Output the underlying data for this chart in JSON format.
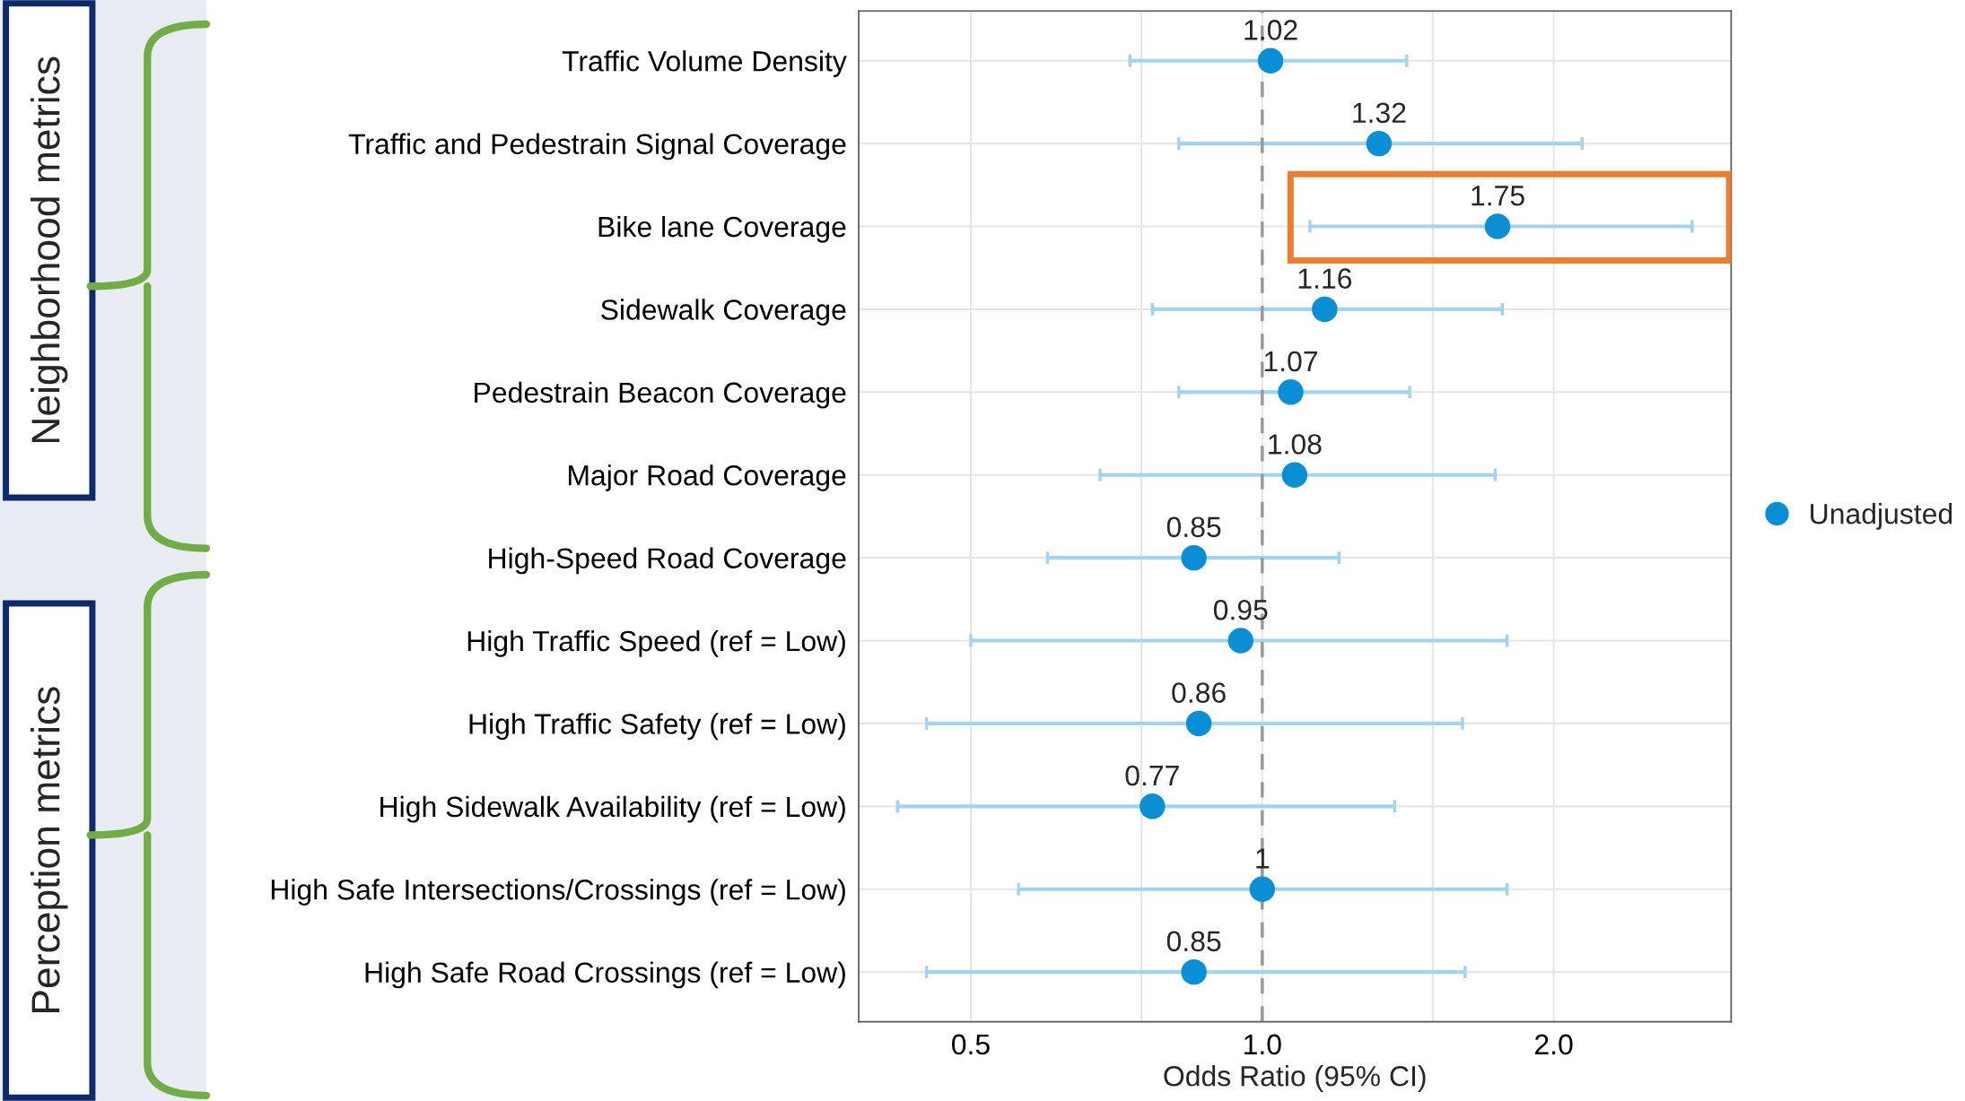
{
  "chart_data": {
    "type": "scatter",
    "orientation": "horizontal",
    "xlabel": "Odds Ratio (95% CI)",
    "categories": [
      "Traffic Volume Density",
      "Traffic and Pedestrain Signal Coverage",
      "Bike lane Coverage",
      "Sidewalk Coverage",
      "Pedestrain Beacon Coverage",
      "Major Road Coverage",
      "High-Speed Road Coverage",
      "High Traffic Speed (ref = Low)",
      "High Traffic Safety (ref = Low)",
      "High Sidewalk Availability (ref = Low)",
      "High Safe Intersections/Crossings (ref = Low)",
      "High Safe Road Crossings (ref = Low)"
    ],
    "series": [
      {
        "name": "Unadjusted",
        "color": "#0a8fd6",
        "values": [
          1.02,
          1.32,
          1.75,
          1.16,
          1.07,
          1.08,
          0.85,
          0.95,
          0.86,
          0.77,
          1,
          0.85
        ],
        "errors": [
          [
            0.73,
            1.41
          ],
          [
            0.82,
            2.14
          ],
          [
            1.12,
            2.78
          ],
          [
            0.77,
            1.77
          ],
          [
            0.82,
            1.42
          ],
          [
            0.68,
            1.74
          ],
          [
            0.6,
            1.2
          ],
          [
            0.5,
            1.79
          ],
          [
            0.45,
            1.61
          ],
          [
            0.42,
            1.37
          ],
          [
            0.56,
            1.79
          ],
          [
            0.45,
            1.62
          ]
        ]
      }
    ],
    "log": "x",
    "xlim": [
      0.383,
      3.05
    ],
    "xticks": [
      {
        "value": 0.5,
        "label": "0.5"
      },
      {
        "value": 0.75,
        "label": null
      },
      {
        "value": 1,
        "label": "1.0"
      },
      {
        "value": 1.5,
        "label": null
      },
      {
        "value": 2,
        "label": "2.0"
      }
    ],
    "ref_lines": [
      {
        "axis": "x",
        "value": 1,
        "color": "#999999",
        "line_style": "dashed"
      }
    ],
    "data_labels": true,
    "grid": true,
    "legend": "right",
    "marker": "circle",
    "annotations": [
      "Neighborhood metrics",
      "Perception metrics"
    ]
  }
}
